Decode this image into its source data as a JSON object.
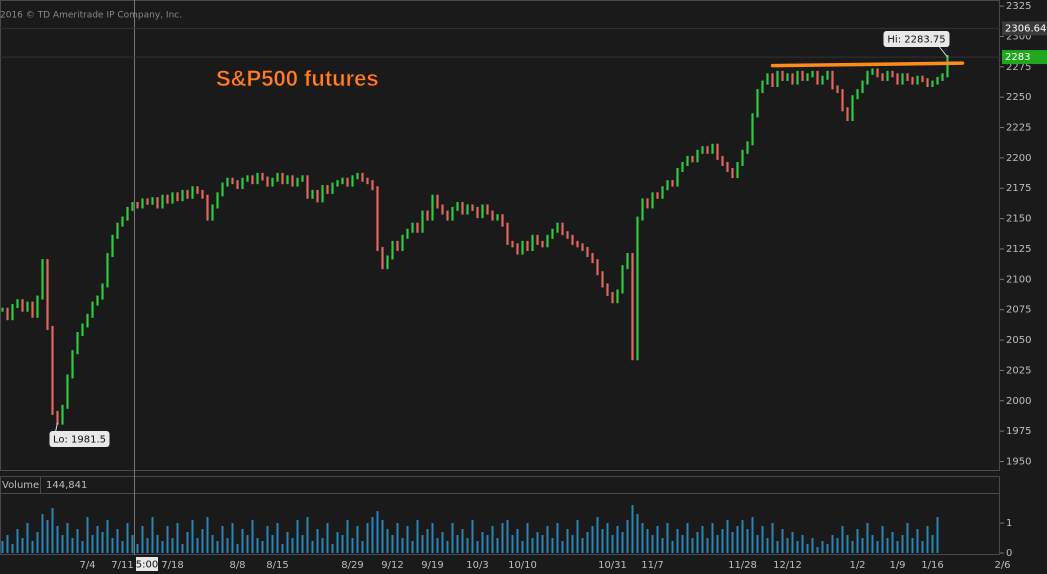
{
  "chart_data": {
    "type": "candlestick",
    "title": "S&P500 futures",
    "copyright": "2016 © TD Ameritrade IP Company, Inc.",
    "categories": [
      null,
      null,
      null,
      null,
      null,
      null,
      null,
      null,
      null,
      null,
      null,
      null,
      null,
      null,
      null,
      null,
      null,
      "7/4",
      null,
      null,
      null,
      null,
      null,
      null,
      "7/11",
      null,
      null,
      null,
      null,
      null,
      null,
      null,
      null,
      null,
      "7/18",
      null,
      null,
      null,
      null,
      null,
      null,
      null,
      null,
      null,
      null,
      null,
      null,
      "8/8",
      null,
      null,
      null,
      null,
      null,
      null,
      null,
      "8/15",
      null,
      null,
      null,
      null,
      null,
      null,
      null,
      null,
      null,
      null,
      null,
      null,
      null,
      null,
      "8/29",
      null,
      null,
      null,
      null,
      null,
      null,
      null,
      "9/12",
      null,
      null,
      null,
      null,
      null,
      null,
      null,
      "9/19",
      null,
      null,
      null,
      null,
      null,
      null,
      null,
      null,
      "10/3",
      null,
      null,
      null,
      null,
      null,
      null,
      null,
      null,
      "10/10",
      null,
      null,
      null,
      null,
      null,
      null,
      null,
      null,
      null,
      null,
      null,
      null,
      null,
      null,
      null,
      null,
      null,
      "10/31",
      null,
      null,
      null,
      null,
      null,
      null,
      null,
      "11/7",
      null,
      null,
      null,
      null,
      null,
      null,
      null,
      null,
      null,
      null,
      null,
      null,
      null,
      null,
      null,
      null,
      null,
      "11/28",
      null,
      null,
      null,
      null,
      null,
      null,
      null,
      null,
      "12/12",
      null,
      null,
      null,
      null,
      null,
      null,
      null,
      null,
      null,
      null,
      null,
      null,
      null,
      "1/2",
      null,
      null,
      null,
      null,
      null,
      null,
      null,
      "1/9",
      null,
      null,
      null,
      null,
      null,
      null,
      "1/16",
      null,
      null,
      null,
      null,
      null,
      null,
      null,
      null,
      null,
      null,
      null,
      null,
      null,
      "2/6"
    ],
    "values": [
      2075,
      2068,
      2078,
      2082,
      2075,
      2080,
      2070,
      2085,
      2115,
      2060,
      1990,
      1982,
      1995,
      2020,
      2040,
      2055,
      2062,
      2070,
      2080,
      2085,
      2095,
      2120,
      2135,
      2145,
      2150,
      2158,
      2162,
      2160,
      2165,
      2163,
      2166,
      2160,
      2168,
      2164,
      2170,
      2166,
      2172,
      2168,
      2175,
      2172,
      2168,
      2150,
      2160,
      2170,
      2178,
      2182,
      2180,
      2176,
      2182,
      2184,
      2180,
      2186,
      2183,
      2178,
      2182,
      2186,
      2180,
      2184,
      2178,
      2182,
      2184,
      2168,
      2172,
      2165,
      2176,
      2172,
      2178,
      2180,
      2182,
      2178,
      2184,
      2186,
      2182,
      2180,
      2175,
      2125,
      2110,
      2118,
      2130,
      2125,
      2135,
      2140,
      2145,
      2140,
      2155,
      2150,
      2168,
      2160,
      2155,
      2150,
      2158,
      2162,
      2155,
      2160,
      2158,
      2152,
      2160,
      2155,
      2150,
      2152,
      2145,
      2130,
      2128,
      2122,
      2130,
      2125,
      2135,
      2130,
      2128,
      2135,
      2140,
      2145,
      2138,
      2135,
      2130,
      2128,
      2125,
      2120,
      2115,
      2105,
      2095,
      2088,
      2082,
      2090,
      2110,
      2120,
      2035,
      2150,
      2165,
      2160,
      2170,
      2168,
      2175,
      2180,
      2178,
      2190,
      2195,
      2200,
      2198,
      2205,
      2208,
      2205,
      2210,
      2200,
      2195,
      2190,
      2185,
      2195,
      2205,
      2212,
      2235,
      2255,
      2262,
      2268,
      2260,
      2270,
      2265,
      2268,
      2262,
      2270,
      2265,
      2268,
      2270,
      2262,
      2266,
      2270,
      2258,
      2255,
      2240,
      2232,
      2250,
      2255,
      2262,
      2270,
      2272,
      2268,
      2265,
      2270,
      2268,
      2262,
      2268,
      2265,
      2262,
      2266,
      2264,
      2260,
      2262,
      2265,
      2268,
      2283,
      null,
      null,
      null,
      null,
      null,
      null,
      null,
      null,
      null,
      null,
      null
    ],
    "up_color": "#2ecc40",
    "down_color": "#e2685f",
    "ylim": [
      1943,
      2330
    ],
    "yticks": [
      1950,
      1975,
      2000,
      2025,
      2050,
      2075,
      2100,
      2125,
      2150,
      2175,
      2200,
      2225,
      2250,
      2275,
      2300,
      2325
    ],
    "hi_label": "Hi: 2283.75",
    "lo_label": "Lo: 1981.5",
    "price_markers": [
      {
        "value": 2306.64,
        "color": "#3a3a3a"
      },
      {
        "value": 2283,
        "color": "#1fa81f"
      }
    ],
    "trendline": {
      "index": [
        154,
        192
      ],
      "values": [
        2276,
        2278
      ],
      "color": "#ff8c1a"
    },
    "volume": {
      "label": "Volume",
      "total": "144,841",
      "color": "#2b86b8",
      "ylim": [
        0,
        1.87
      ],
      "yticks": [
        0,
        1
      ],
      "values": [
        0.4,
        0.6,
        0.3,
        0.8,
        0.5,
        1.0,
        0.4,
        0.7,
        1.3,
        1.1,
        1.5,
        0.9,
        0.6,
        1.0,
        0.5,
        0.8,
        0.4,
        1.2,
        0.6,
        0.9,
        0.7,
        1.1,
        0.5,
        0.8,
        0.4,
        1.0,
        0.6,
        0.3,
        0.9,
        0.5,
        1.2,
        0.6,
        0.4,
        0.9,
        0.5,
        1.0,
        0.3,
        0.7,
        1.1,
        0.5,
        0.8,
        1.2,
        0.6,
        0.4,
        0.9,
        0.5,
        1.0,
        0.3,
        0.8,
        0.6,
        1.1,
        0.5,
        0.4,
        0.9,
        0.6,
        1.0,
        0.3,
        0.7,
        0.5,
        1.1,
        0.6,
        1.2,
        0.4,
        0.8,
        0.5,
        1.0,
        0.3,
        0.7,
        0.6,
        1.1,
        0.5,
        0.9,
        0.4,
        1.0,
        1.2,
        1.4,
        1.1,
        0.8,
        0.6,
        1.0,
        0.5,
        0.9,
        0.4,
        1.1,
        0.6,
        0.8,
        1.0,
        0.5,
        0.7,
        0.4,
        1.0,
        0.6,
        0.8,
        0.5,
        1.1,
        0.4,
        0.7,
        0.6,
        0.9,
        0.5,
        1.0,
        1.1,
        0.6,
        0.8,
        0.4,
        1.0,
        0.5,
        0.7,
        0.6,
        0.9,
        0.5,
        1.0,
        0.4,
        0.8,
        0.6,
        1.1,
        0.5,
        0.7,
        0.9,
        1.2,
        0.8,
        1.0,
        0.6,
        0.9,
        0.7,
        1.1,
        1.6,
        1.3,
        1.0,
        0.8,
        0.6,
        0.9,
        0.5,
        1.0,
        0.4,
        0.8,
        0.6,
        1.0,
        0.5,
        0.7,
        0.9,
        0.5,
        1.0,
        0.6,
        0.8,
        1.1,
        0.7,
        0.9,
        1.1,
        0.8,
        1.2,
        0.6,
        0.9,
        0.5,
        1.0,
        0.4,
        0.8,
        0.5,
        0.7,
        0.4,
        0.6,
        0.3,
        0.5,
        0.2,
        0.4,
        0.3,
        0.6,
        0.5,
        0.9,
        0.6,
        0.4,
        0.8,
        0.5,
        1.0,
        0.6,
        0.4,
        0.9,
        0.5,
        0.7,
        0.4,
        0.6,
        1.0,
        0.5,
        0.8,
        0.4,
        0.9,
        0.6,
        1.2,
        null,
        null,
        null,
        null,
        null,
        null,
        null,
        null,
        null,
        null,
        null
      ]
    },
    "cursor_label": "5:00"
  }
}
